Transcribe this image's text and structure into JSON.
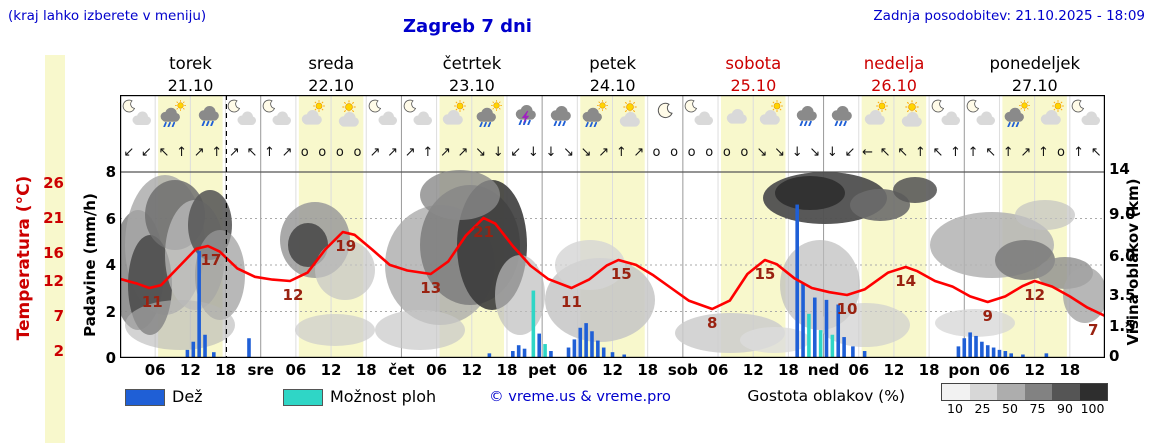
{
  "header": {
    "hint": "(kraj lahko izberete v meniju)",
    "title": "Zagreb 7 dni",
    "updated": "Zadnja posodobitev: 21.10.2025 - 18:09"
  },
  "axes": {
    "left_temp_label": "Temperatura (°C)",
    "left_precip_label": "Padavine (mm/h)",
    "right_label": "Višina oblakov (km)",
    "temp_ticks": [
      26,
      21,
      16,
      12,
      7,
      2
    ],
    "precip_ticks": [
      8,
      6,
      4,
      2,
      0
    ],
    "cloud_ticks": [
      {
        "label": "14",
        "y": 169
      },
      {
        "label": "9.0",
        "y": 214
      },
      {
        "label": "6.0",
        "y": 256
      },
      {
        "label": "3.5",
        "y": 295
      },
      {
        "label": "1.5",
        "y": 326
      },
      {
        "label": "0",
        "y": 356
      }
    ]
  },
  "days": [
    {
      "name": "torek",
      "date": "21.10",
      "holiday": false
    },
    {
      "name": "sreda",
      "date": "22.10",
      "holiday": false
    },
    {
      "name": "četrtek",
      "date": "23.10",
      "holiday": false
    },
    {
      "name": "petek",
      "date": "24.10",
      "holiday": false
    },
    {
      "name": "sobota",
      "date": "25.10",
      "holiday": true
    },
    {
      "name": "nedelja",
      "date": "26.10",
      "holiday": true
    },
    {
      "name": "ponedeljek",
      "date": "27.10",
      "holiday": false
    }
  ],
  "xticks": [
    {
      "label": "06",
      "h": 6
    },
    {
      "label": "12",
      "h": 12
    },
    {
      "label": "18",
      "h": 18
    },
    {
      "label": "sre",
      "h": 24
    },
    {
      "label": "06",
      "h": 30
    },
    {
      "label": "12",
      "h": 36
    },
    {
      "label": "18",
      "h": 42
    },
    {
      "label": "čet",
      "h": 48
    },
    {
      "label": "06",
      "h": 54
    },
    {
      "label": "12",
      "h": 60
    },
    {
      "label": "18",
      "h": 66
    },
    {
      "label": "pet",
      "h": 72
    },
    {
      "label": "06",
      "h": 78
    },
    {
      "label": "12",
      "h": 84
    },
    {
      "label": "18",
      "h": 90
    },
    {
      "label": "sob",
      "h": 96
    },
    {
      "label": "06",
      "h": 102
    },
    {
      "label": "12",
      "h": 108
    },
    {
      "label": "18",
      "h": 114
    },
    {
      "label": "ned",
      "h": 120
    },
    {
      "label": "06",
      "h": 126
    },
    {
      "label": "12",
      "h": 132
    },
    {
      "label": "18",
      "h": 138
    },
    {
      "label": "pon",
      "h": 144
    },
    {
      "label": "06",
      "h": 150
    },
    {
      "label": "12",
      "h": 156
    },
    {
      "label": "18",
      "h": 162
    }
  ],
  "legend": {
    "rain": "Dež",
    "showers": "Možnost ploh",
    "copyright": "© vreme.us & vreme.pro",
    "cloud_density": "Gostota oblakov (%)",
    "cloud_scale": [
      "10",
      "25",
      "50",
      "75",
      "90",
      "100"
    ]
  },
  "colors": {
    "rain": "#1f5fd6",
    "showers": "#2fd6c6",
    "temperature": "#ff0000",
    "accent": "#0000cc",
    "holiday": "#cc0000",
    "daylight": "#f8f8cc",
    "cloud_scale": [
      "#f2f2f2",
      "#d7d7d7",
      "#adadad",
      "#828282",
      "#555555",
      "#2e2e2e"
    ]
  },
  "chart_data": {
    "type": "meteogram",
    "title": "Zagreb 7 dni",
    "x_unit": "hours from 21.10 00:00",
    "x_range": [
      0,
      168
    ],
    "precip_range_mm_h": [
      0,
      8
    ],
    "temp_axis_c": [
      26,
      21,
      16,
      12,
      7,
      2
    ],
    "cloud_height_axis_km": [
      14,
      9.0,
      6.0,
      3.5,
      1.5,
      0
    ],
    "now_h": 18.15,
    "daylight": {
      "start": 6.5,
      "end": 17.5
    },
    "temperature_curve": [
      [
        0,
        12.3
      ],
      [
        3,
        11.6
      ],
      [
        5,
        11
      ],
      [
        7,
        11.4
      ],
      [
        10,
        14
      ],
      [
        13,
        16.6
      ],
      [
        15,
        17
      ],
      [
        17,
        16.2
      ],
      [
        20,
        13.8
      ],
      [
        23,
        12.6
      ],
      [
        26,
        12.2
      ],
      [
        29,
        12
      ],
      [
        32,
        13.2
      ],
      [
        35,
        16.5
      ],
      [
        38,
        19
      ],
      [
        40,
        18.6
      ],
      [
        43,
        16.5
      ],
      [
        46,
        14.3
      ],
      [
        49,
        13.5
      ],
      [
        53,
        13
      ],
      [
        56,
        14.8
      ],
      [
        59,
        18.5
      ],
      [
        62,
        21
      ],
      [
        64,
        20.2
      ],
      [
        67,
        17
      ],
      [
        70,
        14.2
      ],
      [
        73,
        12.3
      ],
      [
        77,
        11
      ],
      [
        80,
        12.2
      ],
      [
        83,
        14.2
      ],
      [
        85,
        15
      ],
      [
        88,
        14.3
      ],
      [
        91,
        12.8
      ],
      [
        94,
        11
      ],
      [
        97,
        9.2
      ],
      [
        101,
        8
      ],
      [
        104,
        9.2
      ],
      [
        107,
        13
      ],
      [
        110,
        15
      ],
      [
        112,
        14.4
      ],
      [
        115,
        12.4
      ],
      [
        118,
        11
      ],
      [
        121,
        10.4
      ],
      [
        124,
        10
      ],
      [
        127,
        10.8
      ],
      [
        131,
        13.2
      ],
      [
        134,
        14
      ],
      [
        136,
        13.4
      ],
      [
        139,
        12
      ],
      [
        142,
        11.2
      ],
      [
        145,
        9.8
      ],
      [
        148,
        9
      ],
      [
        151,
        9.8
      ],
      [
        154,
        11.3
      ],
      [
        156,
        12
      ],
      [
        159,
        11.2
      ],
      [
        162,
        9.8
      ],
      [
        165,
        8.2
      ],
      [
        168,
        7
      ]
    ],
    "temperature_labels": [
      {
        "h": 5.5,
        "v": 11
      },
      {
        "h": 15.5,
        "v": 17
      },
      {
        "h": 29.5,
        "v": 12
      },
      {
        "h": 38.5,
        "v": 19
      },
      {
        "h": 53,
        "v": 13
      },
      {
        "h": 62,
        "v": 21
      },
      {
        "h": 77,
        "v": 11
      },
      {
        "h": 85.5,
        "v": 15
      },
      {
        "h": 101,
        "v": 8
      },
      {
        "h": 110,
        "v": 15
      },
      {
        "h": 124,
        "v": 10
      },
      {
        "h": 134,
        "v": 14
      },
      {
        "h": 148,
        "v": 9
      },
      {
        "h": 156,
        "v": 12
      },
      {
        "h": 166,
        "v": 7
      }
    ],
    "precipitation": [
      {
        "h": 11.5,
        "v": 0.35,
        "type": "r"
      },
      {
        "h": 12.5,
        "v": 0.7,
        "type": "r"
      },
      {
        "h": 13.5,
        "v": 4.6,
        "type": "r"
      },
      {
        "h": 14.5,
        "v": 1.0,
        "type": "r"
      },
      {
        "h": 16,
        "v": 0.25,
        "type": "r"
      },
      {
        "h": 22,
        "v": 0.85,
        "type": "r"
      },
      {
        "h": 63,
        "v": 0.2,
        "type": "r"
      },
      {
        "h": 67,
        "v": 0.3,
        "type": "r"
      },
      {
        "h": 68,
        "v": 0.55,
        "type": "r"
      },
      {
        "h": 69,
        "v": 0.4,
        "type": "r"
      },
      {
        "h": 70.5,
        "v": 2.9,
        "type": "s"
      },
      {
        "h": 71.5,
        "v": 1.05,
        "type": "r"
      },
      {
        "h": 72.5,
        "v": 0.6,
        "type": "s"
      },
      {
        "h": 73.5,
        "v": 0.3,
        "type": "r"
      },
      {
        "h": 76.5,
        "v": 0.45,
        "type": "r"
      },
      {
        "h": 77.5,
        "v": 0.8,
        "type": "r"
      },
      {
        "h": 78.5,
        "v": 1.3,
        "type": "r"
      },
      {
        "h": 79.5,
        "v": 1.5,
        "type": "r"
      },
      {
        "h": 80.5,
        "v": 1.15,
        "type": "r"
      },
      {
        "h": 81.5,
        "v": 0.75,
        "type": "r"
      },
      {
        "h": 82.5,
        "v": 0.45,
        "type": "r"
      },
      {
        "h": 84,
        "v": 0.25,
        "type": "r"
      },
      {
        "h": 86,
        "v": 0.15,
        "type": "r"
      },
      {
        "h": 115.5,
        "v": 6.6,
        "type": "r"
      },
      {
        "h": 116.5,
        "v": 3.2,
        "type": "r"
      },
      {
        "h": 117.5,
        "v": 1.9,
        "type": "s"
      },
      {
        "h": 118.5,
        "v": 2.6,
        "type": "r"
      },
      {
        "h": 119.5,
        "v": 1.2,
        "type": "s"
      },
      {
        "h": 120.5,
        "v": 2.5,
        "type": "r"
      },
      {
        "h": 121.5,
        "v": 1.0,
        "type": "s"
      },
      {
        "h": 122.5,
        "v": 2.3,
        "type": "r"
      },
      {
        "h": 123.5,
        "v": 0.9,
        "type": "r"
      },
      {
        "h": 125,
        "v": 0.5,
        "type": "r"
      },
      {
        "h": 127,
        "v": 0.3,
        "type": "r"
      },
      {
        "h": 143,
        "v": 0.5,
        "type": "r"
      },
      {
        "h": 144,
        "v": 0.85,
        "type": "r"
      },
      {
        "h": 145,
        "v": 1.1,
        "type": "r"
      },
      {
        "h": 146,
        "v": 0.95,
        "type": "r"
      },
      {
        "h": 147,
        "v": 0.7,
        "type": "r"
      },
      {
        "h": 148,
        "v": 0.55,
        "type": "r"
      },
      {
        "h": 149,
        "v": 0.45,
        "type": "r"
      },
      {
        "h": 150,
        "v": 0.35,
        "type": "r"
      },
      {
        "h": 151,
        "v": 0.3,
        "type": "r"
      },
      {
        "h": 152,
        "v": 0.2,
        "type": "r"
      },
      {
        "h": 154,
        "v": 0.15,
        "type": "r"
      },
      {
        "h": 158,
        "v": 0.2,
        "type": "r"
      }
    ],
    "clouds": [
      {
        "cx": 18,
        "cy": 175,
        "rx": 26,
        "ry": 60,
        "fill": "#8a8a8a",
        "opacity": 0.9
      },
      {
        "cx": 45,
        "cy": 150,
        "rx": 40,
        "ry": 70,
        "fill": "#a8a8a8",
        "opacity": 0.8
      },
      {
        "cx": 30,
        "cy": 190,
        "rx": 22,
        "ry": 50,
        "fill": "#4d4d4d",
        "opacity": 0.9
      },
      {
        "cx": 55,
        "cy": 120,
        "rx": 30,
        "ry": 35,
        "fill": "#6e6e6e",
        "opacity": 0.85
      },
      {
        "cx": 75,
        "cy": 160,
        "rx": 30,
        "ry": 55,
        "fill": "#c0c0c0",
        "opacity": 0.7
      },
      {
        "cx": 90,
        "cy": 130,
        "rx": 22,
        "ry": 35,
        "fill": "#5a5a5a",
        "opacity": 0.9
      },
      {
        "cx": 100,
        "cy": 180,
        "rx": 25,
        "ry": 45,
        "fill": "#9a9a9a",
        "opacity": 0.7
      },
      {
        "cx": 60,
        "cy": 230,
        "rx": 55,
        "ry": 25,
        "fill": "#b5b5b5",
        "opacity": 0.6
      },
      {
        "cx": 195,
        "cy": 145,
        "rx": 35,
        "ry": 38,
        "fill": "#9a9a9a",
        "opacity": 0.85
      },
      {
        "cx": 188,
        "cy": 150,
        "rx": 20,
        "ry": 22,
        "fill": "#4a4a4a",
        "opacity": 0.9
      },
      {
        "cx": 225,
        "cy": 175,
        "rx": 30,
        "ry": 30,
        "fill": "#c5c5c5",
        "opacity": 0.7
      },
      {
        "cx": 215,
        "cy": 235,
        "rx": 40,
        "ry": 16,
        "fill": "#cccccc",
        "opacity": 0.7
      },
      {
        "cx": 320,
        "cy": 170,
        "rx": 55,
        "ry": 60,
        "fill": "#ababab",
        "opacity": 0.8
      },
      {
        "cx": 350,
        "cy": 150,
        "rx": 50,
        "ry": 60,
        "fill": "#7d7d7d",
        "opacity": 0.85
      },
      {
        "cx": 372,
        "cy": 150,
        "rx": 35,
        "ry": 65,
        "fill": "#3c3c3c",
        "opacity": 0.9
      },
      {
        "cx": 340,
        "cy": 100,
        "rx": 40,
        "ry": 25,
        "fill": "#8a8a8a",
        "opacity": 0.8
      },
      {
        "cx": 300,
        "cy": 235,
        "rx": 45,
        "ry": 20,
        "fill": "#c8c8c8",
        "opacity": 0.7
      },
      {
        "cx": 400,
        "cy": 200,
        "rx": 25,
        "ry": 40,
        "fill": "#bdbdbd",
        "opacity": 0.7
      },
      {
        "cx": 480,
        "cy": 205,
        "rx": 55,
        "ry": 42,
        "fill": "#c6c6c6",
        "opacity": 0.85
      },
      {
        "cx": 470,
        "cy": 170,
        "rx": 35,
        "ry": 25,
        "fill": "#d4d4d4",
        "opacity": 0.8
      },
      {
        "cx": 610,
        "cy": 238,
        "rx": 55,
        "ry": 20,
        "fill": "#cdcdcd",
        "opacity": 0.85
      },
      {
        "cx": 655,
        "cy": 245,
        "rx": 35,
        "ry": 13,
        "fill": "#dcdcdc",
        "opacity": 0.8
      },
      {
        "cx": 705,
        "cy": 103,
        "rx": 62,
        "ry": 26,
        "fill": "#4f4f4f",
        "opacity": 0.95
      },
      {
        "cx": 690,
        "cy": 98,
        "rx": 35,
        "ry": 17,
        "fill": "#303030",
        "opacity": 0.95
      },
      {
        "cx": 760,
        "cy": 110,
        "rx": 30,
        "ry": 16,
        "fill": "#6b6b6b",
        "opacity": 0.9
      },
      {
        "cx": 700,
        "cy": 190,
        "rx": 40,
        "ry": 45,
        "fill": "#bcbcbc",
        "opacity": 0.7
      },
      {
        "cx": 745,
        "cy": 230,
        "rx": 45,
        "ry": 22,
        "fill": "#cfcfcf",
        "opacity": 0.7
      },
      {
        "cx": 795,
        "cy": 95,
        "rx": 22,
        "ry": 13,
        "fill": "#5a5a5a",
        "opacity": 0.9
      },
      {
        "cx": 872,
        "cy": 150,
        "rx": 62,
        "ry": 33,
        "fill": "#b3b3b3",
        "opacity": 0.85
      },
      {
        "cx": 905,
        "cy": 165,
        "rx": 30,
        "ry": 20,
        "fill": "#7a7a7a",
        "opacity": 0.85
      },
      {
        "cx": 945,
        "cy": 178,
        "rx": 28,
        "ry": 16,
        "fill": "#8d8d8d",
        "opacity": 0.8
      },
      {
        "cx": 855,
        "cy": 228,
        "rx": 40,
        "ry": 14,
        "fill": "#d6d6d6",
        "opacity": 0.75
      },
      {
        "cx": 965,
        "cy": 200,
        "rx": 22,
        "ry": 28,
        "fill": "#a5a5a5",
        "opacity": 0.8
      },
      {
        "cx": 925,
        "cy": 120,
        "rx": 30,
        "ry": 15,
        "fill": "#c2c2c2",
        "opacity": 0.7
      }
    ],
    "icons": {
      "start": 3,
      "step": 6,
      "names": [
        "cloud-moon",
        "rain-sun",
        "rain",
        "cloud-moon",
        "cloud-moon",
        "cloud-sun",
        "sun-cloud",
        "cloud-moon",
        "cloud-moon",
        "cloud-sun",
        "rain-sun",
        "thunder",
        "rain",
        "rain-sun",
        "sun-cloud",
        "moon",
        "cloud-moon",
        "cloud",
        "cloud-sun",
        "rain",
        "rain",
        "cloud-sun",
        "sun-cloud",
        "cloud-moon",
        "cloud-moon",
        "rain-sun",
        "cloud-sun",
        "cloud-moon"
      ]
    },
    "wind": {
      "start": 1.5,
      "step": 3,
      "symbols": [
        "↙",
        "↙",
        "↖",
        "↑",
        "↗",
        "↑",
        "↗",
        "↖",
        "↑",
        "↗",
        "o",
        "o",
        "o",
        "o",
        "↗",
        "↗",
        "↗",
        "↑",
        "↗",
        "↗",
        "↘",
        "↓",
        "↙",
        "↓",
        "↓",
        "↘",
        "↘",
        "↗",
        "↑",
        "↗",
        "o",
        "o",
        "o",
        "o",
        "o",
        "o",
        "↘",
        "↘",
        "↓",
        "↘",
        "↓",
        "↙",
        "←",
        "↖",
        "↖",
        "↑",
        "↖",
        "↑",
        "↑",
        "↖",
        "↑",
        "↗",
        "↑",
        "o",
        "↑",
        "↖"
      ]
    }
  }
}
